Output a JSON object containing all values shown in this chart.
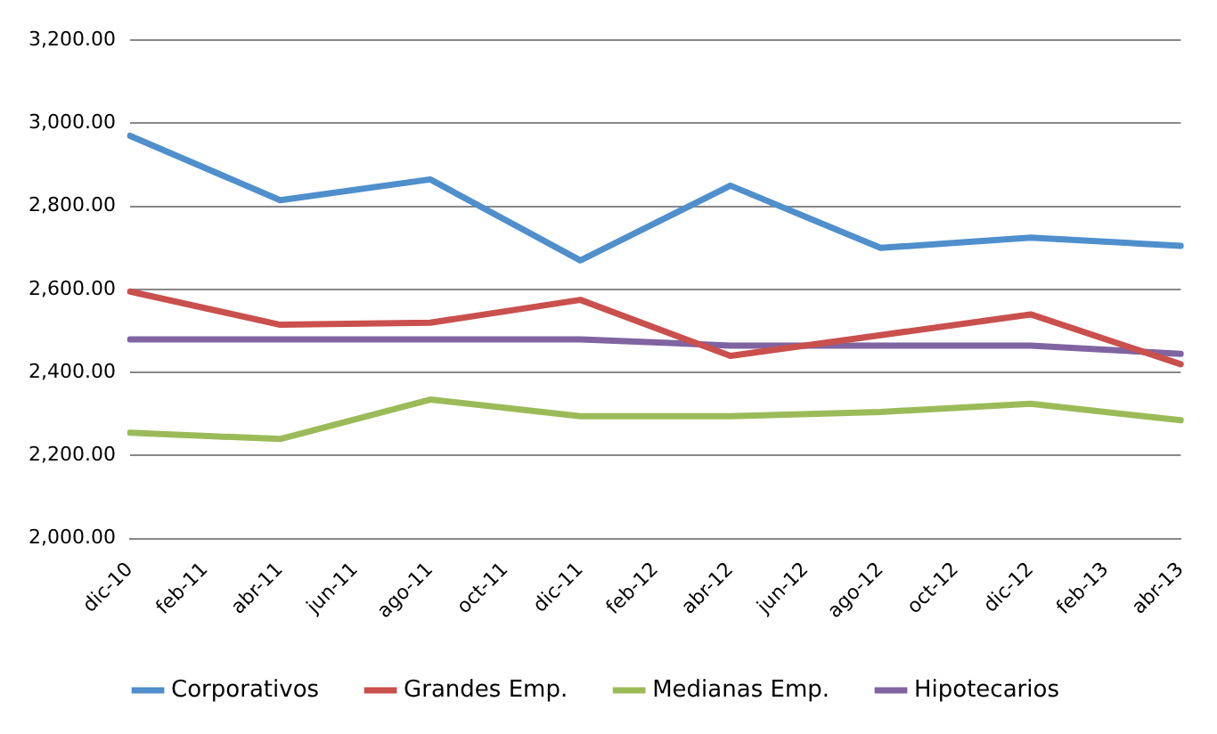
{
  "chart_data": {
    "type": "line",
    "categories": [
      "dic-10",
      "feb-11",
      "abr-11",
      "jun-11",
      "ago-11",
      "oct-11",
      "dic-11",
      "feb-12",
      "abr-12",
      "jun-12",
      "ago-12",
      "oct-12",
      "dic-12",
      "feb-13",
      "abr-13"
    ],
    "series": [
      {
        "name": "Corporativos",
        "color": "#4f8fcc",
        "values": [
          2970,
          null,
          2815,
          null,
          2865,
          null,
          2670,
          null,
          2850,
          null,
          2700,
          null,
          2725,
          null,
          2705
        ]
      },
      {
        "name": "Grandes Emp.",
        "color": "#c9504d",
        "values": [
          2595,
          null,
          2515,
          null,
          2520,
          null,
          2575,
          null,
          2440,
          null,
          2490,
          null,
          2540,
          null,
          2420
        ]
      },
      {
        "name": "Medianas Emp.",
        "color": "#9bbb59",
        "values": [
          2255,
          null,
          2240,
          null,
          2335,
          null,
          2295,
          null,
          2295,
          null,
          2305,
          null,
          2325,
          null,
          2285
        ]
      },
      {
        "name": "Hipotecarios",
        "color": "#8064a2",
        "values": [
          2480,
          null,
          2480,
          null,
          2480,
          null,
          2480,
          null,
          2465,
          null,
          2465,
          null,
          2465,
          null,
          2445
        ]
      }
    ],
    "ylim": [
      2000,
      3200
    ],
    "yticks": [
      {
        "value": 2000,
        "label": "2,000.00"
      },
      {
        "value": 2200,
        "label": "2,200.00"
      },
      {
        "value": 2400,
        "label": "2,400.00"
      },
      {
        "value": 2600,
        "label": "2,600.00"
      },
      {
        "value": 2800,
        "label": "2,800.00"
      },
      {
        "value": 3000,
        "label": "3,000.00"
      },
      {
        "value": 3200,
        "label": "3,200.00"
      }
    ],
    "grid": "y",
    "legend": "bottom",
    "line_style": "solid",
    "marker": "none"
  }
}
